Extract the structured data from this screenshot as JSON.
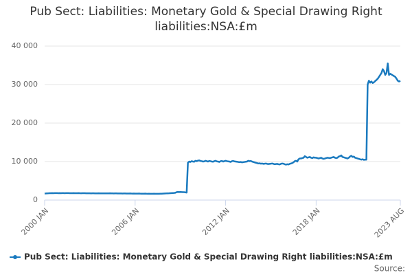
{
  "chart_data": {
    "type": "line",
    "title": "Pub Sect: Liabilities: Monetary Gold & Special Drawing Right liabilities:NSA:£m",
    "source": "Source:",
    "categories": [
      "2000 JAN",
      null,
      null,
      null,
      null,
      null,
      null,
      null,
      null,
      null,
      null,
      null,
      null,
      null,
      null,
      null,
      null,
      null,
      null,
      null,
      null,
      null,
      null,
      null,
      null,
      null,
      null,
      null,
      null,
      null,
      null,
      null,
      null,
      null,
      null,
      null,
      null,
      null,
      null,
      null,
      null,
      null,
      null,
      null,
      null,
      null,
      null,
      null,
      null,
      null,
      null,
      null,
      null,
      null,
      null,
      null,
      null,
      null,
      null,
      null,
      null,
      null,
      null,
      null,
      null,
      null,
      null,
      null,
      null,
      null,
      null,
      null,
      "2006 JAN",
      null,
      null,
      null,
      null,
      null,
      null,
      null,
      null,
      null,
      null,
      null,
      null,
      null,
      null,
      null,
      null,
      null,
      null,
      null,
      null,
      null,
      null,
      null,
      null,
      null,
      null,
      null,
      null,
      null,
      null,
      null,
      null,
      null,
      null,
      null,
      null,
      null,
      null,
      null,
      null,
      null,
      null,
      null,
      null,
      null,
      null,
      null,
      null,
      null,
      null,
      null,
      null,
      null,
      null,
      null,
      null,
      null,
      null,
      null,
      null,
      null,
      null,
      null,
      null,
      null,
      null,
      null,
      null,
      null,
      null,
      null,
      "2012 JAN",
      null,
      null,
      null,
      null,
      null,
      null,
      null,
      null,
      null,
      null,
      null,
      null,
      null,
      null,
      null,
      null,
      null,
      null,
      null,
      null,
      null,
      null,
      null,
      null,
      null,
      null,
      null,
      null,
      null,
      null,
      null,
      null,
      null,
      null,
      null,
      null,
      null,
      null,
      null,
      null,
      null,
      null,
      null,
      null,
      null,
      null,
      null,
      null,
      null,
      null,
      null,
      null,
      null,
      null,
      null,
      null,
      null,
      null,
      null,
      null,
      null,
      null,
      null,
      null,
      null,
      null,
      null,
      null,
      null,
      null,
      null,
      "2018 JAN",
      null,
      null,
      null,
      null,
      null,
      null,
      null,
      null,
      null,
      null,
      null,
      null,
      null,
      null,
      null,
      null,
      null,
      null,
      null,
      null,
      null,
      null,
      null,
      null,
      null,
      null,
      null,
      null,
      null,
      null,
      null,
      null,
      null,
      null,
      null,
      null,
      null,
      null,
      null,
      null,
      null,
      null,
      null,
      null,
      null,
      null,
      null,
      null,
      null,
      null,
      null,
      null,
      null,
      null,
      null,
      null,
      null,
      null,
      null,
      null,
      null,
      null,
      null,
      null,
      null,
      null,
      "2023 AUG"
    ],
    "series": [
      {
        "name": "Pub Sect: Liabilities: Monetary Gold & Special Drawing Right liabilities:NSA:£m",
        "color": "#1a7abf",
        "values": [
          1700,
          1720,
          1750,
          1760,
          1780,
          1790,
          1800,
          1790,
          1800,
          1810,
          1800,
          1790,
          1800,
          1790,
          1810,
          1800,
          1790,
          1800,
          1810,
          1800,
          1790,
          1780,
          1790,
          1800,
          1790,
          1780,
          1790,
          1800,
          1780,
          1770,
          1780,
          1790,
          1780,
          1770,
          1760,
          1770,
          1760,
          1750,
          1760,
          1770,
          1750,
          1740,
          1750,
          1760,
          1740,
          1730,
          1740,
          1750,
          1740,
          1730,
          1740,
          1750,
          1760,
          1740,
          1730,
          1720,
          1730,
          1740,
          1720,
          1710,
          1720,
          1710,
          1700,
          1710,
          1720,
          1700,
          1690,
          1700,
          1710,
          1690,
          1680,
          1690,
          1680,
          1670,
          1680,
          1690,
          1670,
          1660,
          1650,
          1660,
          1670,
          1650,
          1640,
          1650,
          1640,
          1630,
          1640,
          1650,
          1640,
          1630,
          1620,
          1640,
          1650,
          1660,
          1680,
          1700,
          1720,
          1730,
          1750,
          1760,
          1780,
          1800,
          1820,
          1850,
          1900,
          2050,
          2100,
          2080,
          2100,
          2080,
          2060,
          2050,
          2000,
          1950,
          9700,
          10000,
          9900,
          10100,
          10000,
          9950,
          10200,
          10100,
          10250,
          10300,
          10150,
          10100,
          10000,
          10050,
          10200,
          10100,
          10000,
          10150,
          10100,
          10000,
          9950,
          10100,
          10200,
          10050,
          10000,
          9900,
          10100,
          10150,
          10000,
          10100,
          10200,
          10100,
          10050,
          10000,
          9900,
          10100,
          10150,
          10050,
          10000,
          9950,
          9900,
          9850,
          9900,
          9800,
          9850,
          9900,
          9950,
          10000,
          10200,
          10100,
          10150,
          10000,
          9900,
          9800,
          9700,
          9600,
          9500,
          9550,
          9450,
          9500,
          9400,
          9450,
          9500,
          9400,
          9350,
          9400,
          9450,
          9500,
          9400,
          9300,
          9350,
          9400,
          9300,
          9250,
          9400,
          9500,
          9450,
          9300,
          9200,
          9300,
          9250,
          9400,
          9500,
          9600,
          9800,
          10100,
          10200,
          10000,
          10600,
          10800,
          10800,
          10900,
          11000,
          11400,
          11200,
          11000,
          11100,
          11200,
          11000,
          10900,
          11100,
          11000,
          11000,
          10900,
          10800,
          10900,
          11000,
          10800,
          10700,
          10800,
          10900,
          11000,
          10950,
          10900,
          11000,
          11100,
          11200,
          11000,
          10900,
          11000,
          11300,
          11400,
          11600,
          11200,
          11100,
          11000,
          10900,
          10800,
          11000,
          11300,
          11500,
          11200,
          11300,
          11000,
          10900,
          10800,
          10700,
          10600,
          10500,
          10600,
          10450,
          10500,
          10500,
          30000,
          31000,
          30500,
          30800,
          30400,
          30600,
          30900,
          31200,
          31500,
          32000,
          32500,
          33000,
          34000,
          33500,
          32500,
          33000,
          35500,
          32500,
          32800,
          32600,
          32400,
          32200,
          32000,
          31500,
          31000,
          30800,
          31000
        ]
      }
    ],
    "ylim": [
      0,
      40000
    ],
    "yticks": [
      0,
      {
        "value": 10000,
        "label": "10 000"
      },
      {
        "value": 20000,
        "label": "20 000"
      },
      {
        "value": 30000,
        "label": "30 000"
      },
      {
        "value": 40000,
        "label": "40 000"
      }
    ],
    "grid": true
  }
}
